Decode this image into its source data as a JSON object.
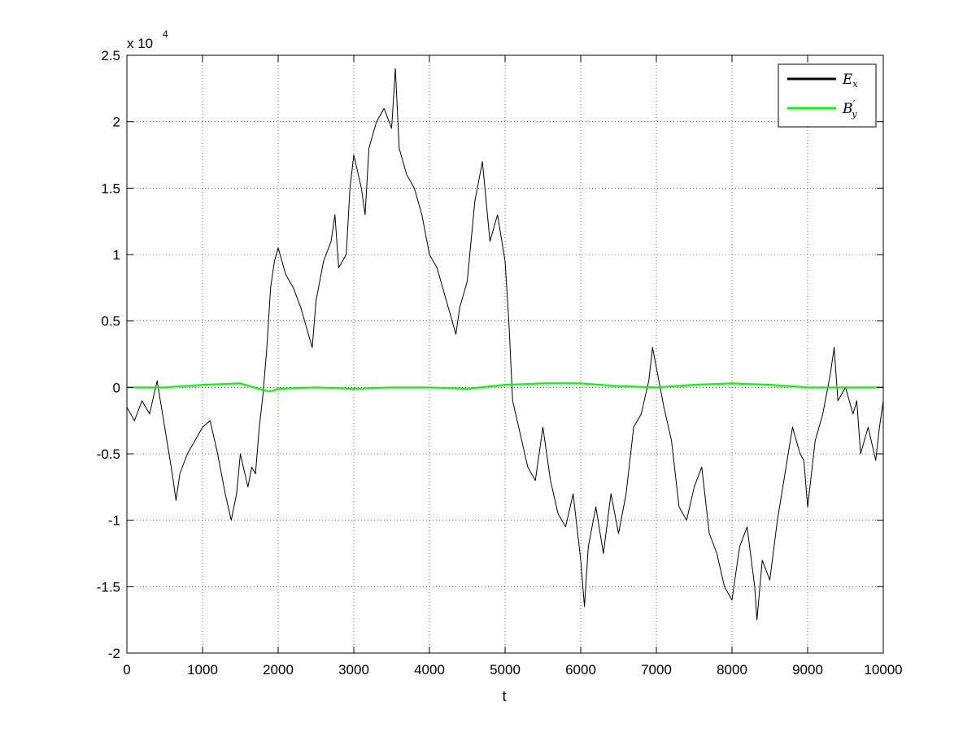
{
  "chart_data": {
    "type": "line",
    "title": "",
    "xlabel": "t",
    "ylabel": "",
    "y_multiplier_label": "x 10",
    "y_multiplier_exponent": "4",
    "xlim": [
      0,
      10000
    ],
    "ylim": [
      -20000,
      25000
    ],
    "x_ticks": [
      0,
      1000,
      2000,
      3000,
      4000,
      5000,
      6000,
      7000,
      8000,
      9000,
      10000
    ],
    "x_tick_labels": [
      "0",
      "1000",
      "2000",
      "3000",
      "4000",
      "5000",
      "6000",
      "7000",
      "8000",
      "9000",
      "10000"
    ],
    "y_ticks": [
      -20000,
      -15000,
      -10000,
      -5000,
      0,
      5000,
      10000,
      15000,
      20000,
      25000
    ],
    "y_tick_labels": [
      "-2",
      "-1.5",
      "-1",
      "-0.5",
      "0",
      "0.5",
      "1",
      "1.5",
      "2",
      "2.5"
    ],
    "grid": true,
    "legend_position": "top-right",
    "series": [
      {
        "name": "E_x",
        "legend_main": "E",
        "legend_sub": "x",
        "color": "#000000",
        "x": [
          0,
          100,
          200,
          300,
          400,
          500,
          600,
          650,
          700,
          800,
          900,
          1000,
          1100,
          1200,
          1300,
          1380,
          1450,
          1500,
          1600,
          1650,
          1700,
          1750,
          1800,
          1850,
          1900,
          1950,
          2000,
          2100,
          2200,
          2300,
          2400,
          2450,
          2500,
          2600,
          2700,
          2750,
          2800,
          2900,
          2950,
          3000,
          3100,
          3150,
          3200,
          3300,
          3400,
          3500,
          3550,
          3600,
          3700,
          3800,
          3900,
          4000,
          4100,
          4200,
          4300,
          4350,
          4400,
          4500,
          4600,
          4700,
          4800,
          4900,
          5000,
          5050,
          5100,
          5200,
          5300,
          5400,
          5500,
          5600,
          5700,
          5800,
          5900,
          6000,
          6050,
          6100,
          6200,
          6300,
          6400,
          6500,
          6600,
          6700,
          6800,
          6900,
          6950,
          7000,
          7100,
          7200,
          7300,
          7400,
          7500,
          7600,
          7700,
          7800,
          7900,
          8000,
          8100,
          8200,
          8300,
          8330,
          8400,
          8500,
          8600,
          8700,
          8800,
          8900,
          8950,
          9000,
          9100,
          9200,
          9300,
          9350,
          9400,
          9500,
          9600,
          9650,
          9700,
          9800,
          9900,
          9950,
          10000
        ],
        "y": [
          -1500,
          -2500,
          -1000,
          -2000,
          500,
          -3000,
          -6500,
          -8500,
          -6500,
          -5000,
          -4000,
          -3000,
          -2500,
          -5000,
          -8000,
          -10000,
          -8000,
          -5000,
          -7500,
          -6000,
          -6500,
          -3000,
          -500,
          3000,
          7500,
          9500,
          10500,
          8500,
          7500,
          6000,
          4000,
          3000,
          6500,
          9500,
          11000,
          13000,
          9000,
          10000,
          15000,
          17500,
          15000,
          13000,
          18000,
          20000,
          21000,
          19500,
          24000,
          18000,
          16000,
          15000,
          13000,
          10000,
          9000,
          7000,
          5000,
          4000,
          6000,
          8000,
          14000,
          17000,
          11000,
          13000,
          9500,
          5000,
          -1000,
          -3500,
          -6000,
          -7000,
          -3000,
          -7000,
          -9500,
          -10500,
          -8000,
          -13000,
          -16500,
          -12000,
          -9000,
          -12500,
          -8000,
          -11000,
          -8000,
          -3000,
          -2000,
          500,
          3000,
          1500,
          -1500,
          -4000,
          -9000,
          -10000,
          -7500,
          -6000,
          -11000,
          -12500,
          -15000,
          -16000,
          -12000,
          -10500,
          -15000,
          -17500,
          -13000,
          -14500,
          -10000,
          -6500,
          -3000,
          -5000,
          -5500,
          -9000,
          -4000,
          -2000,
          1000,
          3000,
          -1000,
          0,
          -2000,
          -1000,
          -5000,
          -3000,
          -5500,
          -3000,
          -1000
        ]
      },
      {
        "name": "B'_y",
        "legend_main": "B",
        "legend_sub": "y",
        "legend_sup": "′",
        "color": "#00ff00",
        "x": [
          0,
          500,
          1000,
          1500,
          1800,
          1900,
          2000,
          2500,
          3000,
          3500,
          4000,
          4500,
          5000,
          5500,
          6000,
          6500,
          7000,
          7500,
          8000,
          8500,
          9000,
          9500,
          10000
        ],
        "y": [
          0,
          0,
          200,
          300,
          -200,
          -300,
          -100,
          0,
          -100,
          0,
          0,
          -100,
          200,
          300,
          300,
          100,
          0,
          200,
          300,
          200,
          0,
          0,
          0
        ]
      }
    ]
  }
}
